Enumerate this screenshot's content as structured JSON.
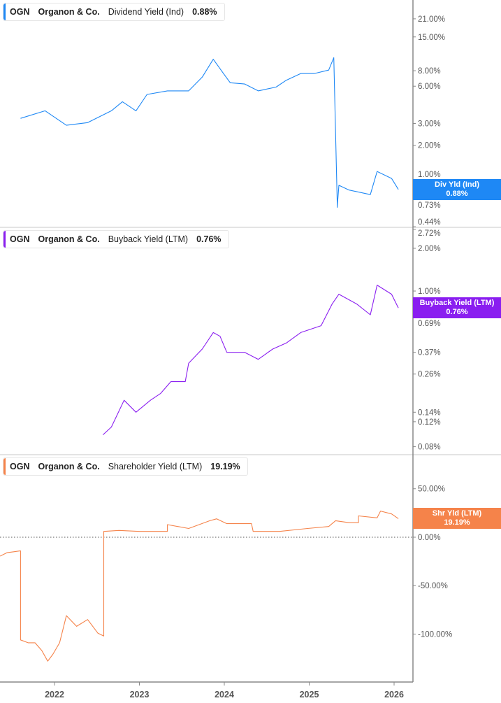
{
  "chart_data": [
    {
      "type": "line",
      "ticker": "OGN",
      "company": "Organon & Co.",
      "metric": "Dividend Yield (Ind)",
      "current_value": "0.88%",
      "badge_label": "Div Yld (Ind)",
      "color": "#1e88f5",
      "scale": "log",
      "ylim": [
        0.435,
        29.8
      ],
      "y_ticks": [
        "21.00%",
        "15.00%",
        "8.00%",
        "6.00%",
        "3.00%",
        "2.00%",
        "1.00%",
        "0.73%",
        "0.44%"
      ],
      "y_tick_values": [
        21,
        15,
        8,
        6,
        3,
        2,
        1,
        0.73,
        0.44
      ],
      "series": [
        {
          "x": [
            2021.6,
            2021.89,
            2022.14,
            2022.39,
            2022.67,
            2022.8,
            2022.96,
            2023.09,
            2023.33,
            2023.58,
            2023.74,
            2023.87,
            2023.99,
            2024.07,
            2024.24,
            2024.4,
            2024.61,
            2024.73,
            2024.9,
            2025.06,
            2025.23,
            2025.29,
            2025.33,
            2025.33,
            2025.35,
            2025.47,
            2025.72,
            2025.8,
            2025.97,
            2026.05
          ],
          "y": [
            3.3,
            3.8,
            2.9,
            3.05,
            3.8,
            4.5,
            3.8,
            5.15,
            5.5,
            5.5,
            7.1,
            9.9,
            7.6,
            6.4,
            6.25,
            5.5,
            5.9,
            6.7,
            7.6,
            7.6,
            8.1,
            10.2,
            0.69,
            0.63,
            0.95,
            0.87,
            0.8,
            1.23,
            1.08,
            0.88
          ]
        }
      ]
    },
    {
      "type": "line",
      "ticker": "OGN",
      "company": "Organon & Co.",
      "metric": "Buyback Yield (LTM)",
      "current_value": "0.76%",
      "badge_label": "Buyback Yield (LTM)",
      "color": "#8a1ef0",
      "scale": "log",
      "ylim": [
        0.0703,
        2.81
      ],
      "y_ticks": [
        "2.72%",
        "2.00%",
        "1.00%",
        "0.69%",
        "0.37%",
        "0.26%",
        "0.14%",
        "0.12%",
        "0.08%"
      ],
      "y_tick_values": [
        2.72,
        2,
        1,
        0.69,
        0.37,
        0.26,
        0.14,
        0.12,
        0.08
      ],
      "series": [
        {
          "x": [
            2022.57,
            2022.67,
            2022.82,
            2022.96,
            2023.13,
            2023.25,
            2023.37,
            2023.54,
            2023.58,
            2023.74,
            2023.87,
            2023.95,
            2024.03,
            2024.24,
            2024.4,
            2024.57,
            2024.73,
            2024.9,
            2025.14,
            2025.27,
            2025.35,
            2025.56,
            2025.72,
            2025.8,
            2025.97,
            2026.05
          ],
          "y": [
            0.097,
            0.11,
            0.17,
            0.14,
            0.17,
            0.19,
            0.23,
            0.23,
            0.31,
            0.39,
            0.51,
            0.48,
            0.37,
            0.37,
            0.33,
            0.39,
            0.43,
            0.51,
            0.57,
            0.81,
            0.95,
            0.81,
            0.68,
            1.1,
            0.95,
            0.76
          ]
        }
      ]
    },
    {
      "type": "line",
      "ticker": "OGN",
      "company": "Organon & Co.",
      "metric": "Shareholder Yield (LTM)",
      "current_value": "19.19%",
      "badge_label": "Shr Yld (LTM)",
      "color": "#f5834a",
      "scale": "linear",
      "ylim": [
        -149.5,
        85.2
      ],
      "y_ticks": [
        "50.00%",
        "0.00%",
        "-50.00%",
        "-100.00%"
      ],
      "y_tick_values": [
        50,
        0,
        -50,
        -100
      ],
      "zero_line": true,
      "series": [
        {
          "x": [
            2021.36,
            2021.44,
            2021.52,
            2021.6,
            2021.6,
            2021.69,
            2021.77,
            2021.85,
            2021.92,
            2021.98,
            2022.06,
            2022.14,
            2022.26,
            2022.39,
            2022.51,
            2022.58,
            2022.58,
            2022.76,
            2023.0,
            2023.33,
            2023.33,
            2023.58,
            2023.83,
            2023.91,
            2024.03,
            2024.32,
            2024.34,
            2024.65,
            2024.98,
            2025.23,
            2025.31,
            2025.47,
            2025.58,
            2025.58,
            2025.8,
            2025.84,
            2025.97,
            2026.05
          ],
          "y": [
            -19.5,
            -16,
            -15,
            -14,
            -106,
            -109,
            -109,
            -117,
            -128,
            -121,
            -109,
            -81,
            -92,
            -85,
            -99,
            -102,
            6,
            7,
            6,
            6,
            13,
            9,
            17,
            19,
            14,
            14,
            6,
            6,
            9,
            11,
            17,
            15,
            15,
            22,
            20,
            27,
            24,
            19.19
          ]
        }
      ]
    }
  ],
  "x_axis": {
    "ticks": [
      "2022",
      "2023",
      "2024",
      "2025",
      "2026"
    ],
    "tick_values": [
      2022,
      2023,
      2024,
      2025,
      2026
    ]
  }
}
